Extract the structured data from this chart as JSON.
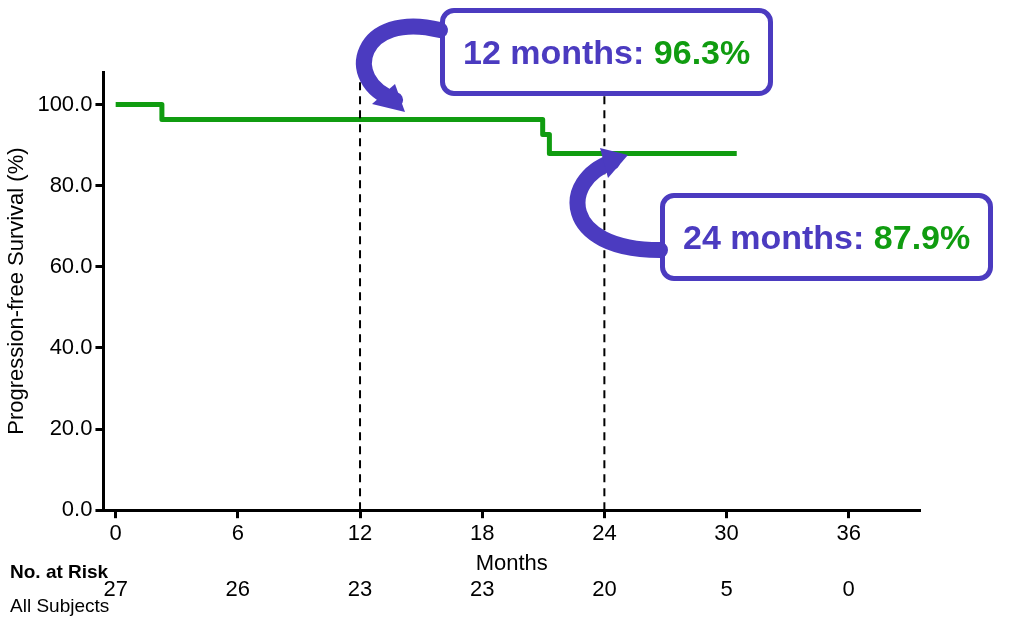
{
  "chart_data": {
    "type": "line",
    "xlabel": "Months",
    "ylabel": "Progression-free Survival (%)",
    "x": [
      0,
      2.27,
      2.27,
      20.97,
      20.97,
      21.3,
      21.3,
      30.5
    ],
    "series": [
      {
        "color": "#109c10",
        "values": [
          100,
          100,
          96.3,
          96.3,
          92.6,
          92.6,
          87.9,
          87.9
        ]
      }
    ],
    "xlim": [
      -0.6,
      39.5
    ],
    "xticks": [
      0,
      6,
      12,
      18,
      24,
      30,
      36
    ],
    "ylim": [
      0,
      108
    ],
    "yticks": [
      {
        "value": 0,
        "label": "0.0"
      },
      {
        "value": 20,
        "label": "20.0"
      },
      {
        "value": 40,
        "label": "40.0"
      },
      {
        "value": 60,
        "label": "60.0"
      },
      {
        "value": 80,
        "label": "80.0"
      },
      {
        "value": 100,
        "label": "100.0"
      }
    ],
    "ref_lines": [
      {
        "axis": "x",
        "value": 12,
        "color": "#000000",
        "line_style": "dashed"
      },
      {
        "axis": "x",
        "value": 24,
        "color": "#000000",
        "line_style": "dashed"
      }
    ],
    "annotations": [
      "12 months: 96.3%",
      "24 months: 87.9%",
      "No. at Risk",
      "All Subjects",
      "27",
      "26",
      "23",
      "23",
      "20",
      "5",
      "0"
    ],
    "grid": false,
    "legend": false,
    "marker": "none",
    "line_style": "solid"
  }
}
